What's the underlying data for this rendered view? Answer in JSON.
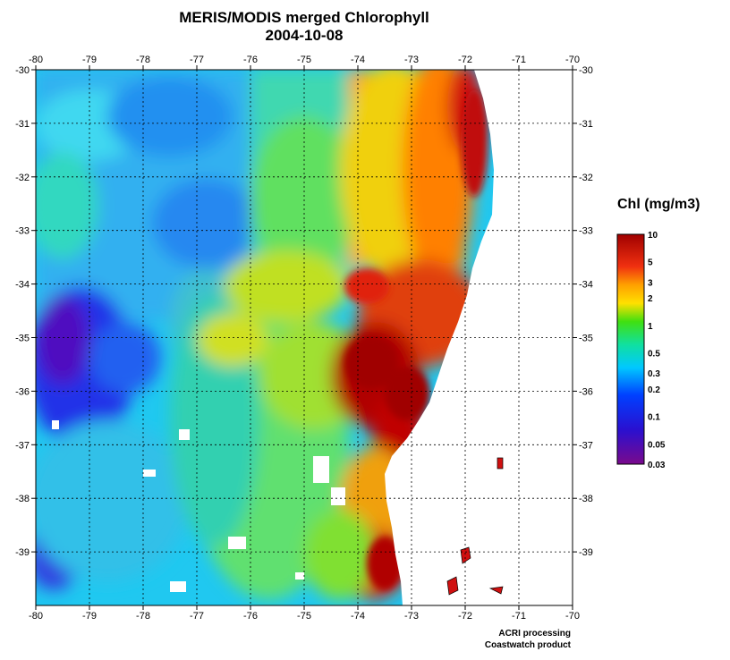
{
  "title": "MERIS/MODIS merged Chlorophyll",
  "date": "2004-10-08",
  "legend": {
    "title": "Chl (mg/m3)",
    "ticks": [
      {
        "value": 10,
        "label": "10"
      },
      {
        "value": 5,
        "label": "5"
      },
      {
        "value": 3,
        "label": "3"
      },
      {
        "value": 2,
        "label": "2"
      },
      {
        "value": 1,
        "label": "1"
      },
      {
        "value": 0.5,
        "label": "0.5"
      },
      {
        "value": 0.3,
        "label": "0.3"
      },
      {
        "value": 0.2,
        "label": "0.2"
      },
      {
        "value": 0.1,
        "label": "0.1"
      },
      {
        "value": 0.05,
        "label": "0.05"
      },
      {
        "value": 0.03,
        "label": "0.03"
      }
    ],
    "range": [
      0.03,
      10
    ],
    "scale": "log",
    "colors": [
      "#7a0a8c",
      "#1a1af0",
      "#00c8ff",
      "#10e060",
      "#50e010",
      "#ffe000",
      "#ff8000",
      "#f01010",
      "#b00000"
    ]
  },
  "chart_data": {
    "type": "heatmap",
    "title": "MERIS/MODIS merged Chlorophyll",
    "subtitle": "2004-10-08",
    "x_ticks": [
      "-80",
      "-79",
      "-78",
      "-77",
      "-76",
      "-75",
      "-74",
      "-73",
      "-72",
      "-71",
      "-70"
    ],
    "y_ticks": [
      "-30",
      "-31",
      "-32",
      "-33",
      "-34",
      "-35",
      "-36",
      "-37",
      "-38",
      "-39"
    ],
    "xlim": [
      -80,
      -70
    ],
    "ylim": [
      -40,
      -30
    ],
    "grid": true,
    "value_units": "Chl (mg/m3)",
    "value_scale": "log",
    "value_range": [
      0.03,
      10
    ]
  },
  "credits": [
    "ACRI processing",
    "Coastwatch product"
  ]
}
